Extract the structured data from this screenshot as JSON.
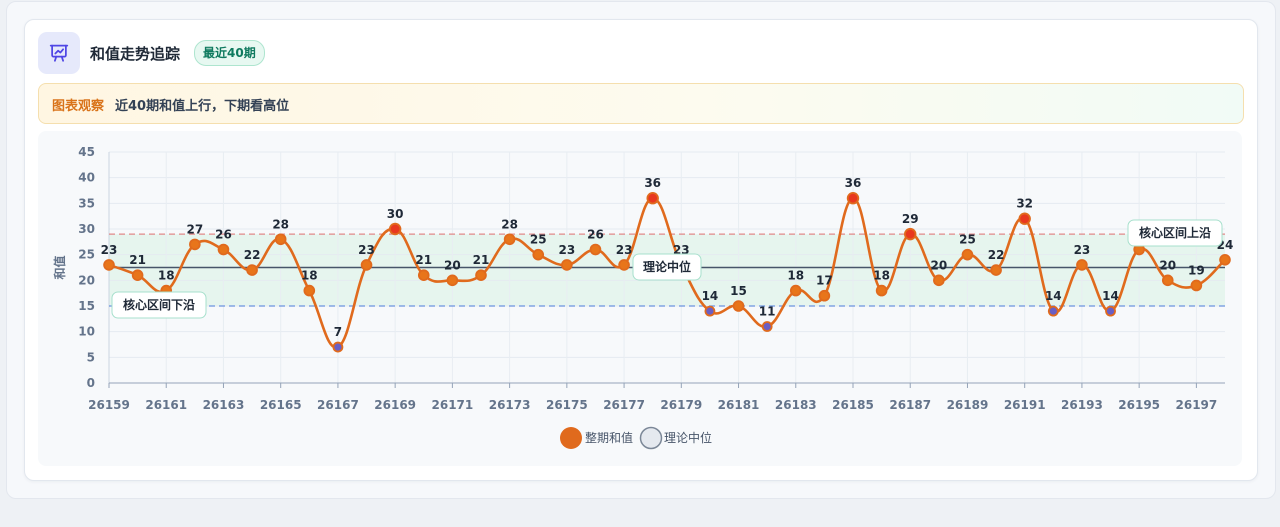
{
  "header": {
    "title": "和值走势追踪",
    "badge": "最近40期",
    "icon": "presentation-chart-icon"
  },
  "notice": {
    "tag": "图表观察",
    "text": "近40期和值上行，下期看高位"
  },
  "colors": {
    "line": "#e06a1d",
    "point_high": "#e8381f",
    "point_mid": "#e8751a",
    "point_low": "#6a5fc4",
    "median_line": "#475569",
    "band_fill": "#e3f4ec",
    "upper_dash": "#e08a8a",
    "lower_dash": "#6b93e0"
  },
  "chart_data": {
    "type": "line",
    "ylabel": "和值",
    "ylim": [
      0,
      45
    ],
    "yticks": [
      0,
      5,
      10,
      15,
      20,
      25,
      30,
      35,
      40,
      45
    ],
    "x": [
      26159,
      26160,
      26161,
      26162,
      26163,
      26164,
      26165,
      26166,
      26167,
      26168,
      26169,
      26170,
      26171,
      26172,
      26173,
      26174,
      26175,
      26176,
      26177,
      26178,
      26179,
      26180,
      26181,
      26182,
      26183,
      26184,
      26185,
      26186,
      26187,
      26188,
      26189,
      26190,
      26191,
      26192,
      26193,
      26194,
      26195,
      26196,
      26197,
      26198
    ],
    "xtick_labels": [
      "26159",
      "26161",
      "26163",
      "26165",
      "26167",
      "26169",
      "26171",
      "26173",
      "26175",
      "26177",
      "26179",
      "26181",
      "26183",
      "26185",
      "26187",
      "26189",
      "26191",
      "26193",
      "26195",
      "26197"
    ],
    "series": [
      {
        "name": "整期和值",
        "values": [
          23,
          21,
          18,
          27,
          26,
          22,
          28,
          18,
          7,
          23,
          30,
          21,
          20,
          21,
          28,
          25,
          23,
          26,
          23,
          36,
          23,
          14,
          15,
          11,
          18,
          17,
          36,
          18,
          29,
          20,
          25,
          22,
          32,
          14,
          23,
          14,
          26,
          20,
          19,
          24
        ]
      }
    ],
    "reference_lines": {
      "median": {
        "name": "理论中位",
        "value": 22.5
      },
      "upper": {
        "name": "核心区间上沿",
        "value": 29
      },
      "lower": {
        "name": "核心区间下沿",
        "value": 15
      }
    },
    "legend": {
      "position": "bottom",
      "items": [
        "整期和值",
        "理论中位"
      ]
    },
    "grid": true
  }
}
